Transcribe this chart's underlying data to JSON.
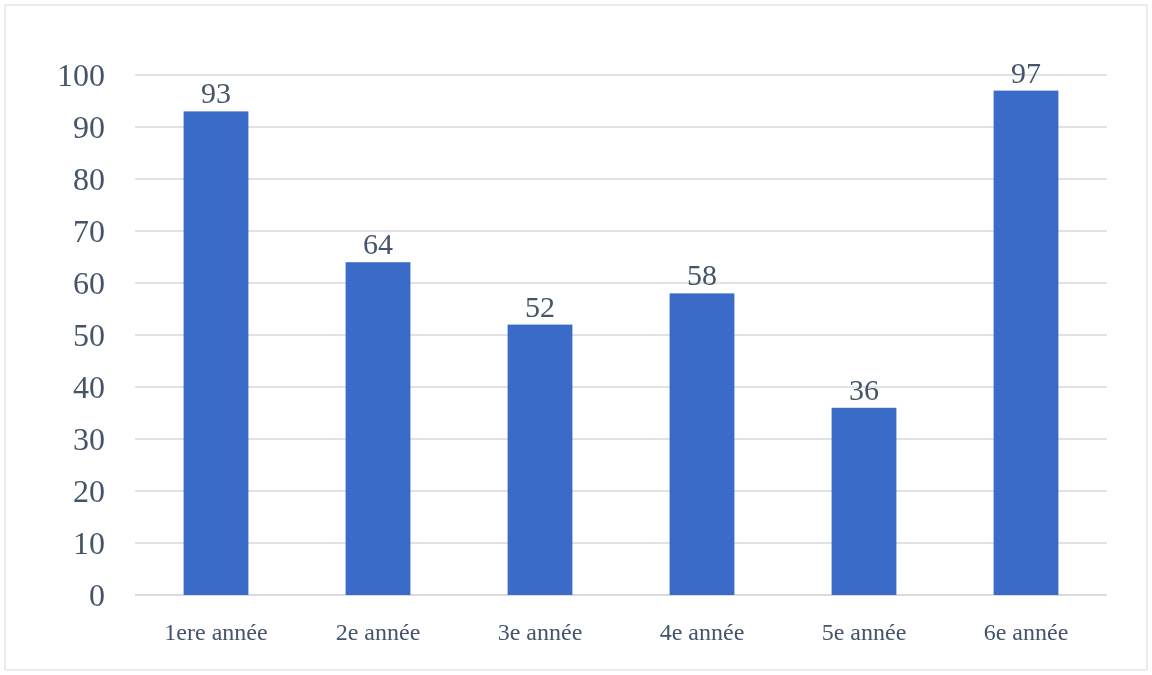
{
  "chart_data": {
    "type": "bar",
    "categories": [
      "1ere année",
      "2e année",
      "3e année",
      "4e année",
      "5e année",
      "6e année"
    ],
    "values": [
      93,
      64,
      52,
      58,
      36,
      97
    ],
    "color": "#3a6bc9",
    "ylim": [
      0,
      100
    ],
    "yticks": [
      0,
      10,
      20,
      30,
      40,
      50,
      60,
      70,
      80,
      90,
      100
    ],
    "grid": "y",
    "data_labels": true
  }
}
